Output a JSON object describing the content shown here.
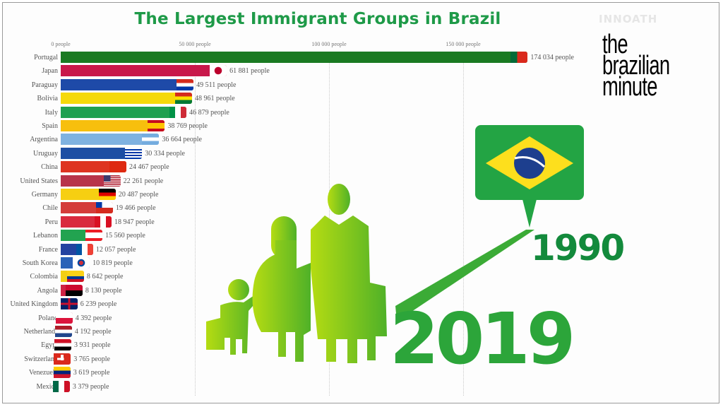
{
  "title": "The Largest Immigrant Groups in Brazil",
  "watermark": "INNOATH",
  "logo": {
    "lines": [
      "the",
      "brazilian",
      "minute"
    ]
  },
  "axis": {
    "ticks": [
      {
        "label": "0 people",
        "value": 0
      },
      {
        "label": "50 000 people",
        "value": 50000
      },
      {
        "label": "100 000 people",
        "value": 100000
      },
      {
        "label": "150 000 people",
        "value": 150000
      }
    ]
  },
  "graphic": {
    "year_start": "1990",
    "year_end": "2019",
    "flag": "brazil-flag"
  },
  "colors": {
    "title": "#1e9a48",
    "accent_green": "#2ca53a",
    "dark_green": "#138a3c"
  },
  "chart_data": {
    "type": "bar",
    "orientation": "horizontal",
    "title": "The Largest Immigrant Groups in Brazil",
    "xlabel": "people",
    "ylabel": "",
    "xlim": [
      0,
      180000
    ],
    "grid": true,
    "x_ticks": [
      "0 people",
      "50 000 people",
      "100 000 people",
      "150 000 people"
    ],
    "categories": [
      "Portugal",
      "Japan",
      "Paraguay",
      "Bolivia",
      "Italy",
      "Spain",
      "Argentina",
      "Uruguay",
      "China",
      "United States",
      "Germany",
      "Chile",
      "Peru",
      "Lebanon",
      "France",
      "South Korea",
      "Colombia",
      "Angola",
      "United Kingdom",
      "Poland",
      "Netherlands",
      "Egypt",
      "Switzerland",
      "Venezuela",
      "Mexico"
    ],
    "values": [
      174034,
      61881,
      49511,
      48961,
      46879,
      38769,
      36664,
      30334,
      24467,
      22261,
      20487,
      19466,
      18947,
      15560,
      12057,
      10819,
      8642,
      8130,
      6239,
      4392,
      4192,
      3931,
      3765,
      3619,
      3379
    ],
    "value_labels": [
      "174 034 people",
      "61 881 people",
      "49 511 people",
      "48 961 people",
      "46 879 people",
      "38 769 people",
      "36 664 people",
      "30 334 people",
      "24 467 people",
      "22 261 people",
      "20 487 people",
      "19 466 people",
      "18 947 people",
      "15 560 people",
      "12 057 people",
      "10 819 people",
      "8 642 people",
      "8 130 people",
      "6 239 people",
      "4 392 people",
      "4 192 people",
      "3 931 people",
      "3 765 people",
      "3 619 people",
      "3 379 people"
    ],
    "bar_colors": [
      "#1a7a22",
      "#c8184a",
      "#1e4aa8",
      "#f5d90a",
      "#1fa050",
      "#f7bf0d",
      "#7fb2e0",
      "#1d4ea3",
      "#de3421",
      "#b8344a",
      "#f6cf12",
      "#d43c3a",
      "#d92a3e",
      "#22a350",
      "#2342a0",
      "#2a62b8",
      "#f3cf15",
      "#cf2244",
      "#25409a",
      "#dc3050",
      "#3560b0",
      "#c9303f",
      "#ec1c24",
      "#2a4fa8",
      "#1c8a48"
    ],
    "flags": [
      "portugal",
      "japan",
      "paraguay",
      "bolivia",
      "italy",
      "spain",
      "argentina",
      "uruguay",
      "china",
      "united-states",
      "germany",
      "chile",
      "peru",
      "lebanon",
      "france",
      "south-korea",
      "colombia",
      "angola",
      "united-kingdom",
      "poland",
      "netherlands",
      "egypt",
      "switzerland",
      "venezuela",
      "mexico"
    ]
  }
}
